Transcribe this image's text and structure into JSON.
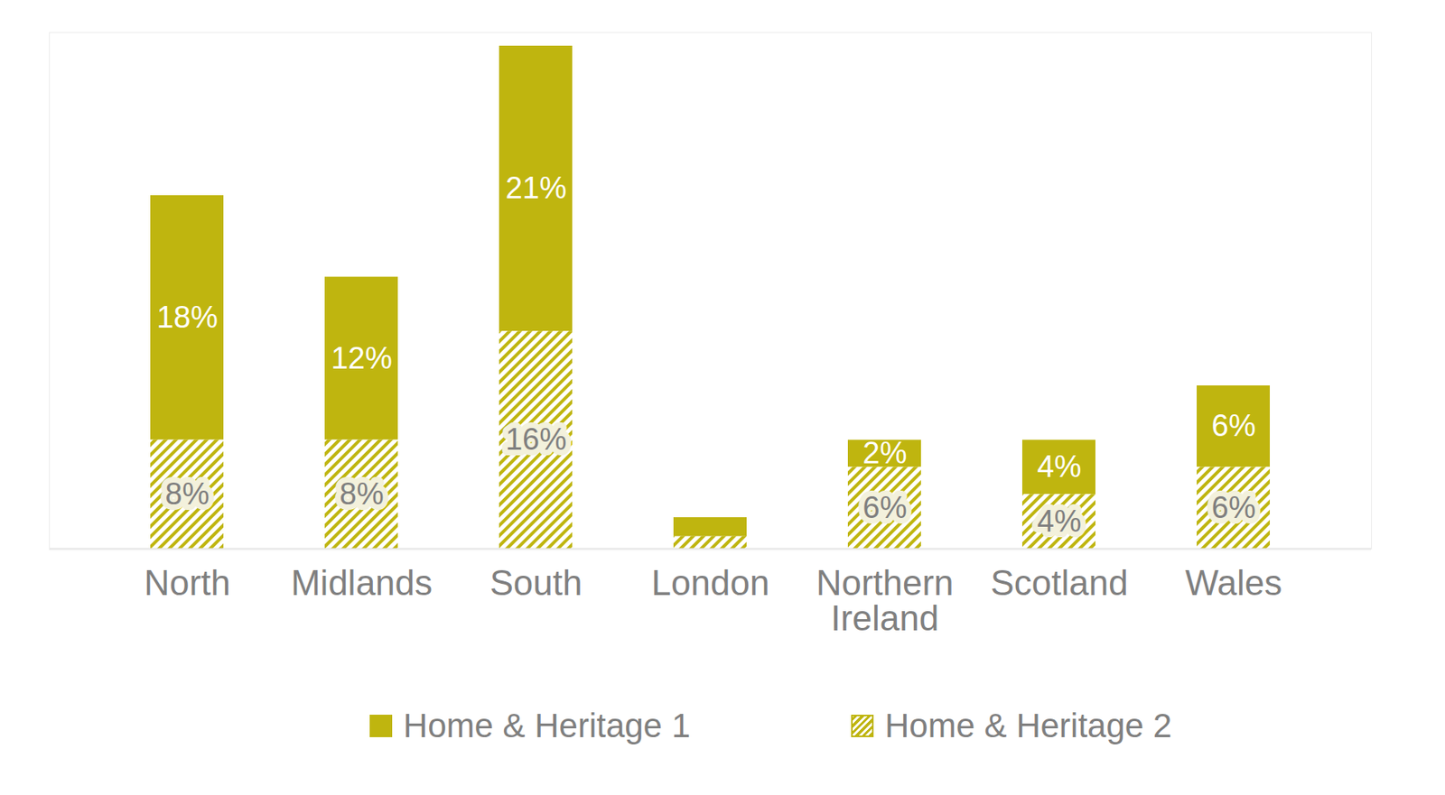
{
  "chart_data": {
    "type": "bar",
    "categories": [
      "North",
      "Midlands",
      "South",
      "London",
      "Northern Ireland",
      "Scotland",
      "Wales"
    ],
    "series": [
      {
        "name": "Home & Heritage 1",
        "color": "#bfb50f",
        "values": [
          18,
          12,
          21,
          1.4,
          2,
          4,
          6
        ],
        "value_labels": [
          "18%",
          "12%",
          "21%",
          null,
          "2%",
          "4%",
          "6%"
        ]
      },
      {
        "name": "Home & Heritage 2",
        "color": "#bfb50f",
        "values": [
          8,
          8,
          16,
          0.9,
          6,
          4,
          6
        ],
        "value_labels": [
          "8%",
          "8%",
          "16%",
          null,
          "6%",
          "4%",
          "6%"
        ]
      }
    ],
    "ylim": [
      0,
      38
    ],
    "stacked": true,
    "data_labels": true,
    "tick_labels": "x",
    "legend": "bottom",
    "grid": false
  }
}
